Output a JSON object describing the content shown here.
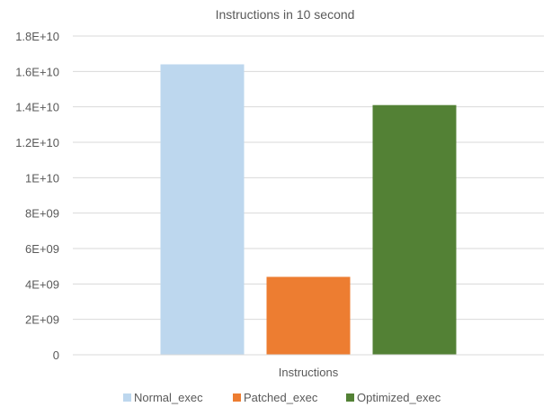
{
  "chart_data": {
    "type": "bar",
    "title": "Instructions in 10 second",
    "categories": [
      "Instructions"
    ],
    "xlabel": "",
    "ylabel": "",
    "ylim": [
      0,
      18000000000
    ],
    "yticks": [
      0,
      2000000000,
      4000000000,
      6000000000,
      8000000000,
      10000000000,
      12000000000,
      14000000000,
      16000000000,
      18000000000
    ],
    "ytick_labels": [
      "0",
      "2E+09",
      "4E+09",
      "6E+09",
      "8E+09",
      "1E+10",
      "1.2E+10",
      "1.4E+10",
      "1.6E+10",
      "1.8E+10"
    ],
    "grid": true,
    "legend_position": "bottom",
    "series": [
      {
        "name": "Normal_exec",
        "values": [
          16400000000
        ],
        "color": "#BDD7EE"
      },
      {
        "name": "Patched_exec",
        "values": [
          4400000000
        ],
        "color": "#ED7D31"
      },
      {
        "name": "Optimized_exec",
        "values": [
          14100000000
        ],
        "color": "#538135"
      }
    ]
  }
}
